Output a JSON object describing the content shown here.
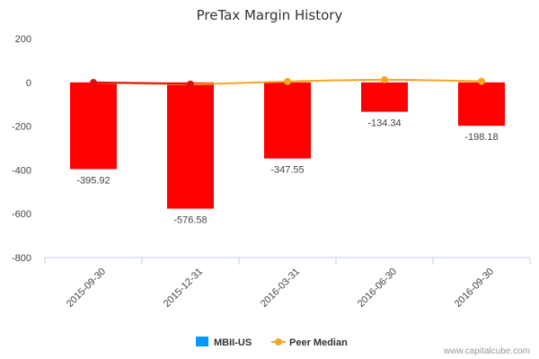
{
  "chart_data": {
    "type": "bar",
    "title": "PreTax Margin History",
    "categories": [
      "2015-09-30",
      "2015-12-31",
      "2016-03-31",
      "2016-06-30",
      "2016-09-30"
    ],
    "series": [
      {
        "name": "MBII-US",
        "type": "bar",
        "values": [
          -395.92,
          -576.58,
          -347.55,
          -134.34,
          -198.18
        ],
        "labels": [
          "-395.92",
          "-576.58",
          "-347.55",
          "-134.34",
          "-198.18"
        ]
      },
      {
        "name": "Peer Median",
        "type": "line",
        "values": [
          -1,
          -8,
          4,
          12,
          5
        ]
      }
    ],
    "ylim": [
      -800,
      200
    ],
    "yticks": [
      200,
      0,
      -200,
      -400,
      -600,
      -800
    ],
    "ytick_labels": [
      "200",
      "0",
      "-200",
      "-400",
      "-600",
      "-800"
    ],
    "grid": false,
    "legend": "bottom"
  },
  "colors": {
    "bar_fill": "#ff0000",
    "legend_swatch": "#0099ff",
    "mbii_line": "#dd1111",
    "peer_line": "#f5a623"
  },
  "credit": "www.capitalcube.com"
}
